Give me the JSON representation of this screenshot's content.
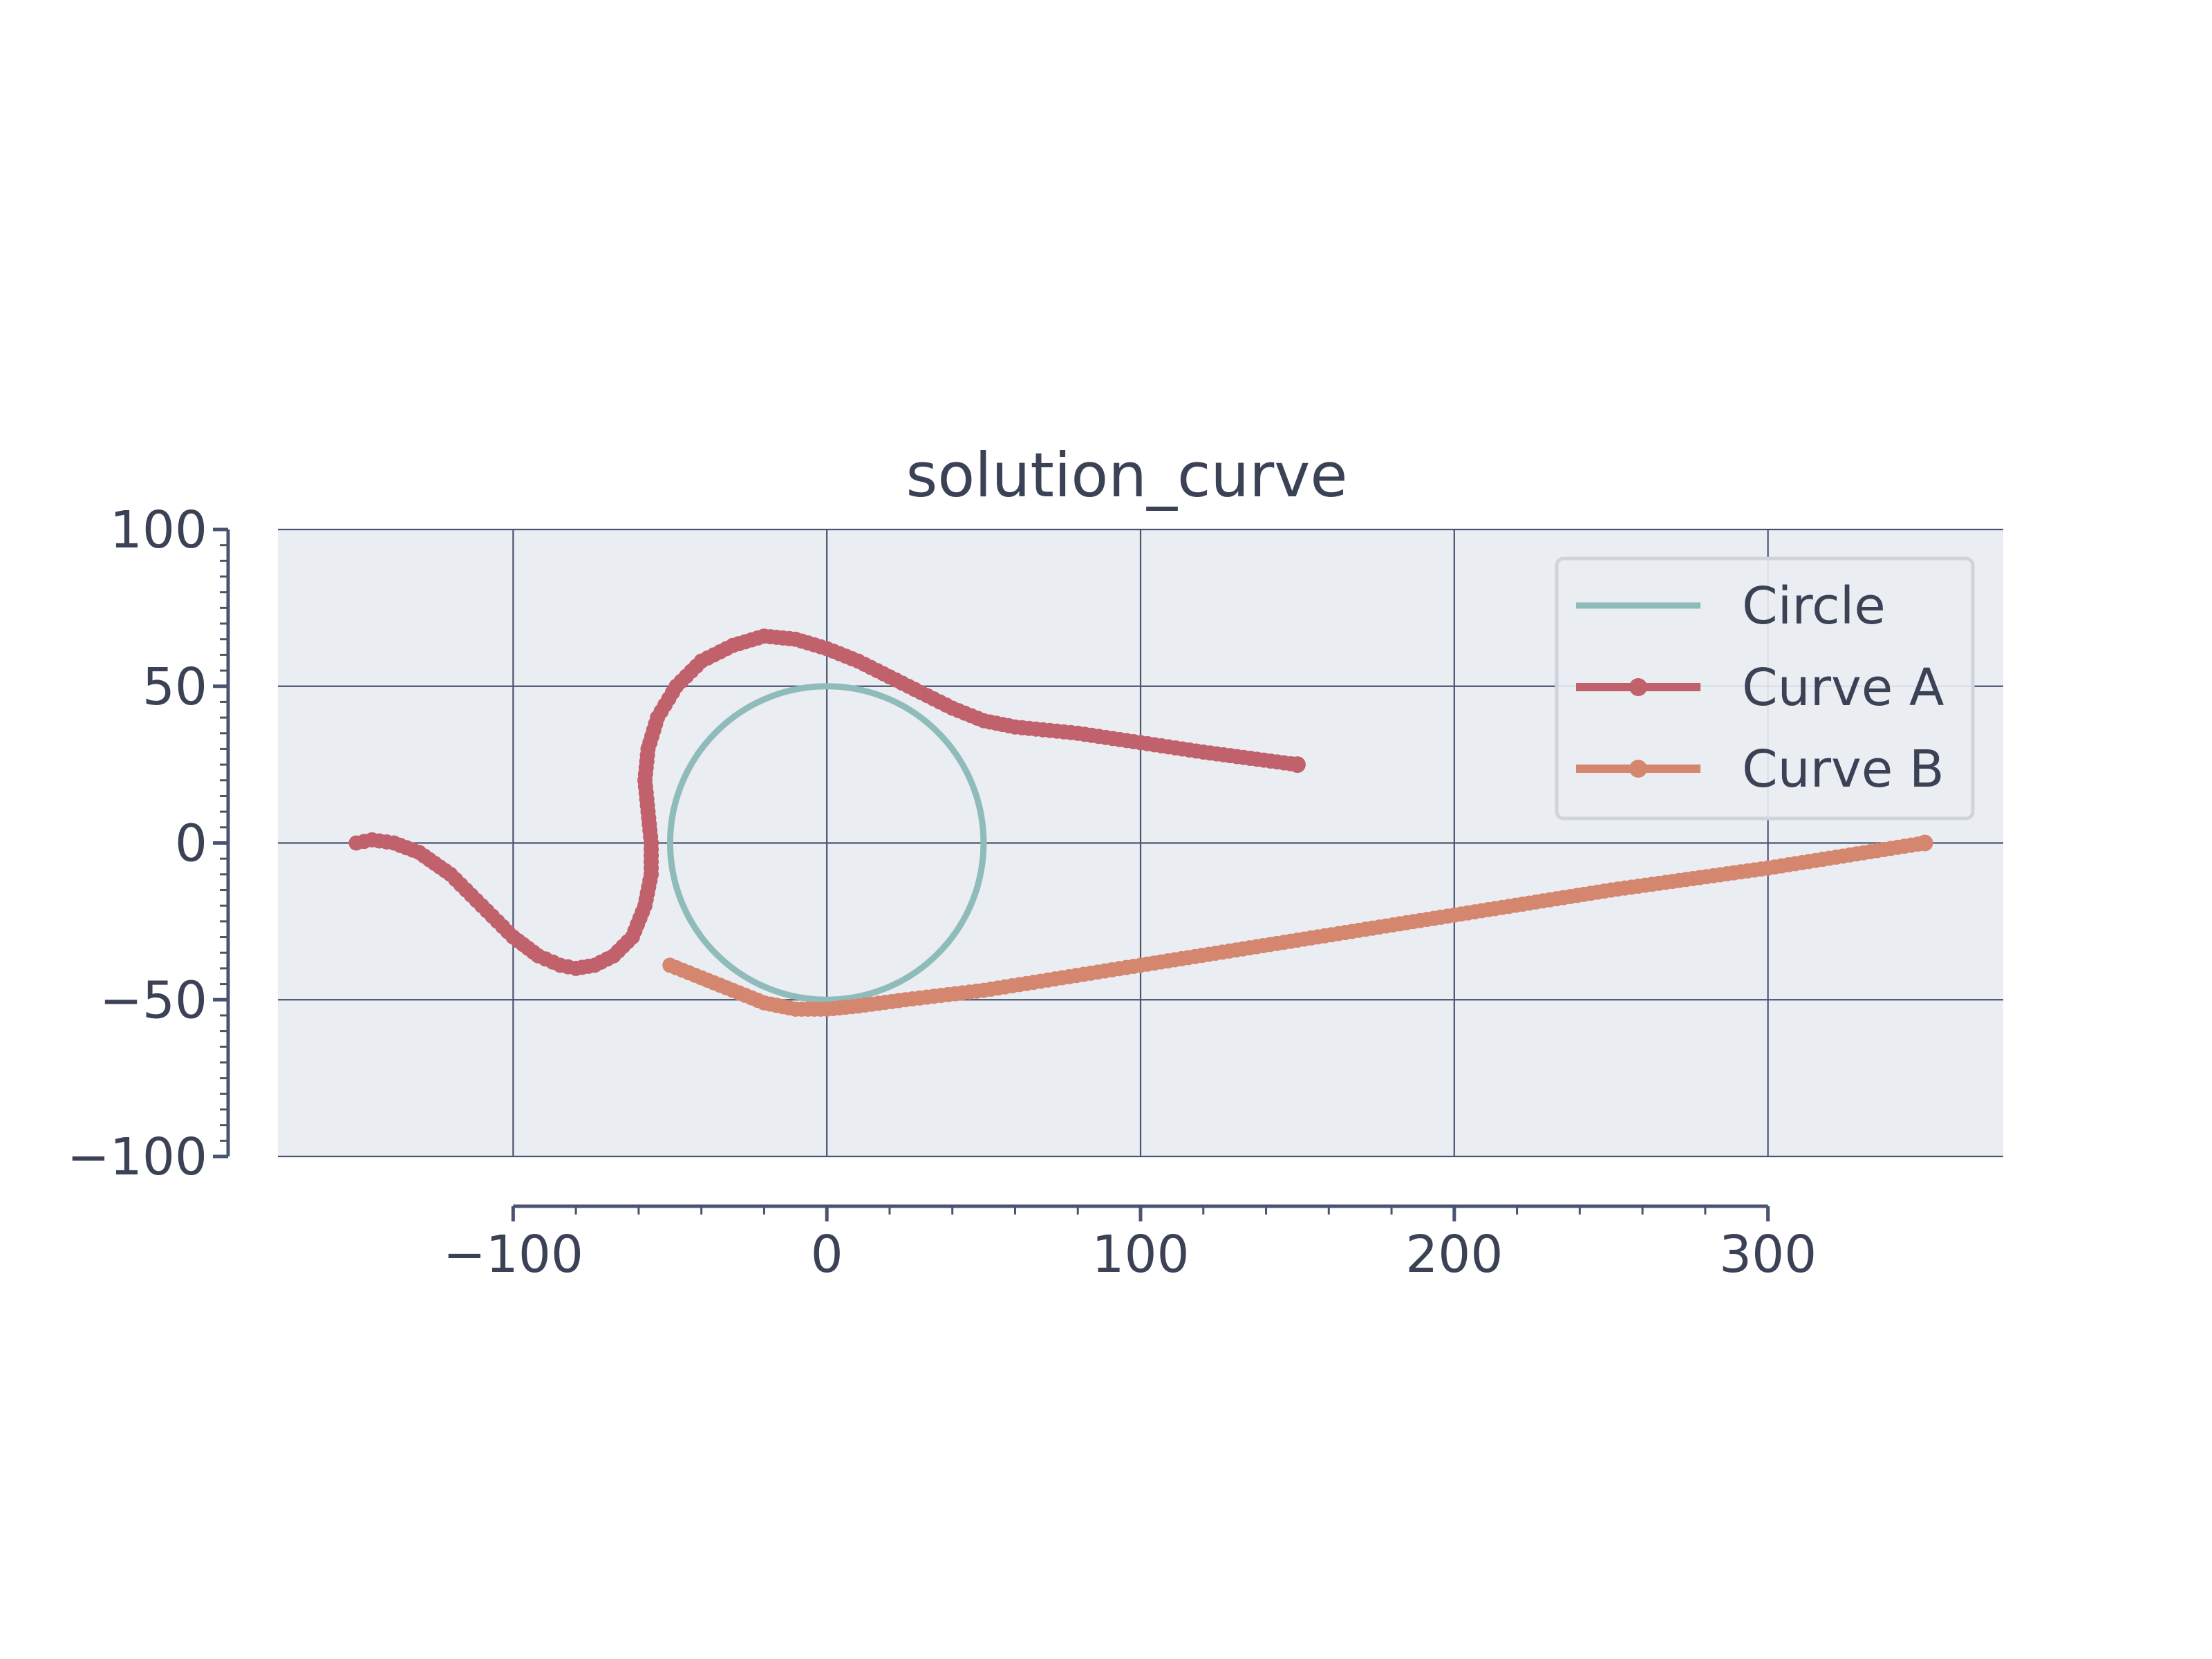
{
  "chart_data": {
    "type": "line",
    "title": "solution_curve",
    "xlabel": "",
    "ylabel": "",
    "xlim": [
      -175,
      375
    ],
    "ylim": [
      -100,
      100
    ],
    "x_spine_range": [
      -100,
      300
    ],
    "xticks": [
      -100,
      0,
      100,
      200,
      300
    ],
    "xtick_labels": [
      "−100",
      "0",
      "100",
      "200",
      "300"
    ],
    "xminor_step": 20,
    "yticks": [
      -100,
      -50,
      0,
      50,
      100
    ],
    "ytick_labels": [
      "−100",
      "−50",
      "0",
      "50",
      "100"
    ],
    "yminor_step": 5,
    "grid": true,
    "legend_position": "top-right",
    "background_color": "#eaedf2",
    "grid_color": "#4a5470",
    "axis_color": "#4a5470",
    "series": [
      {
        "name": "Circle",
        "kind": "circle",
        "center": [
          0,
          0
        ],
        "radius": 50,
        "color": "#8fbcbb",
        "marker": false
      },
      {
        "name": "Curve A",
        "color": "#c0616b",
        "marker": true,
        "points": [
          [
            -150,
            0
          ],
          [
            -145,
            1
          ],
          [
            -138,
            0
          ],
          [
            -130,
            -3
          ],
          [
            -120,
            -10
          ],
          [
            -110,
            -20
          ],
          [
            -100,
            -30
          ],
          [
            -92,
            -36
          ],
          [
            -85,
            -39
          ],
          [
            -80,
            -40
          ],
          [
            -74,
            -39
          ],
          [
            -68,
            -36
          ],
          [
            -62,
            -30
          ],
          [
            -58,
            -20
          ],
          [
            -56,
            -10
          ],
          [
            -56,
            0
          ],
          [
            -57,
            10
          ],
          [
            -58,
            20
          ],
          [
            -57,
            30
          ],
          [
            -54,
            40
          ],
          [
            -48,
            50
          ],
          [
            -40,
            58
          ],
          [
            -30,
            63
          ],
          [
            -20,
            66
          ],
          [
            -10,
            65
          ],
          [
            0,
            62
          ],
          [
            10,
            58
          ],
          [
            20,
            53
          ],
          [
            30,
            48
          ],
          [
            40,
            43
          ],
          [
            50,
            39
          ],
          [
            60,
            37
          ],
          [
            80,
            35
          ],
          [
            100,
            32
          ],
          [
            120,
            29
          ],
          [
            150,
            25
          ]
        ]
      },
      {
        "name": "Curve B",
        "color": "#d4876e",
        "marker": true,
        "points": [
          [
            -50,
            -39
          ],
          [
            -40,
            -43
          ],
          [
            -30,
            -47
          ],
          [
            -20,
            -51
          ],
          [
            -10,
            -53
          ],
          [
            0,
            -53
          ],
          [
            10,
            -52
          ],
          [
            25,
            -50
          ],
          [
            50,
            -47
          ],
          [
            75,
            -43
          ],
          [
            100,
            -39
          ],
          [
            150,
            -31
          ],
          [
            200,
            -23
          ],
          [
            250,
            -15
          ],
          [
            300,
            -8
          ],
          [
            350,
            0
          ]
        ]
      }
    ]
  }
}
